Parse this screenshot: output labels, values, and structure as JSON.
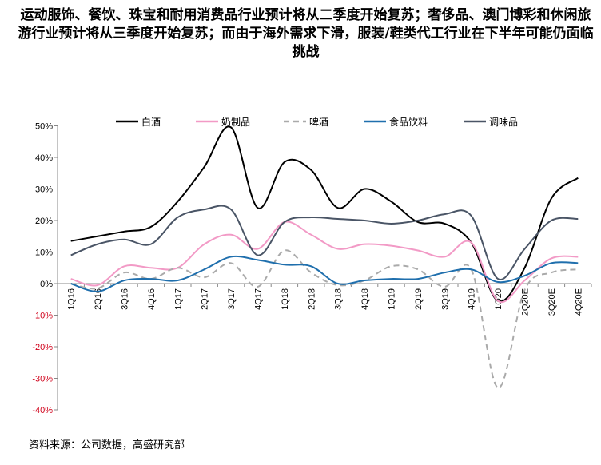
{
  "title": "运动服饰、餐饮、珠宝和耐用消费品行业预计将从二季度开始复苏；奢侈品、澳门博彩和休闲旅游行业预计将从三季度开始复苏；而由于海外需求下滑，服装/鞋类代工行业在下半年可能仍面临挑战",
  "source": "资料来源：公司数据，高盛研究部",
  "chart_data": {
    "type": "line",
    "categories": [
      "1Q16",
      "2Q16",
      "3Q16",
      "4Q16",
      "1Q17",
      "2Q17",
      "3Q17",
      "4Q17",
      "1Q18",
      "2Q18",
      "3Q18",
      "4Q18",
      "1Q19",
      "2Q19",
      "3Q19",
      "4Q19",
      "1Q20",
      "2Q20E",
      "3Q20E",
      "4Q20E"
    ],
    "ylim": [
      -40,
      50
    ],
    "yticks": [
      50,
      40,
      30,
      20,
      10,
      0,
      -10,
      -20,
      -30,
      -40
    ],
    "ytick_labels": [
      "50%",
      "40%",
      "30%",
      "20%",
      "10%",
      "0%",
      "-10%",
      "-20%",
      "-30%",
      "-40%"
    ],
    "legend": "top",
    "series": [
      {
        "name": "白酒",
        "color": "#000000",
        "dash": false,
        "values": [
          13.5,
          15,
          16.5,
          18,
          26,
          37,
          49.5,
          24,
          38.5,
          36,
          24,
          30,
          26,
          19.5,
          19,
          13,
          -5.5,
          5,
          27,
          33.5
        ]
      },
      {
        "name": "奶制品",
        "color": "#f29ac6",
        "dash": false,
        "values": [
          1.5,
          -0.5,
          5.5,
          5,
          5,
          12.5,
          15.5,
          11,
          19.5,
          15.5,
          11,
          12.5,
          12,
          10.5,
          8.5,
          13,
          -5.5,
          1,
          8,
          8.5
        ]
      },
      {
        "name": "啤酒",
        "color": "#aaaaaa",
        "dash": true,
        "values": [
          0,
          -1.5,
          3.5,
          1.5,
          5,
          2,
          6.5,
          -1,
          10.5,
          3.5,
          -0.5,
          1,
          5.5,
          4.5,
          -1,
          4.5,
          -33,
          -2,
          3.5,
          4.5
        ]
      },
      {
        "name": "食品饮料",
        "color": "#1f6fad",
        "dash": false,
        "values": [
          0,
          -2.5,
          1,
          1.5,
          1,
          4.5,
          8.5,
          7.5,
          6,
          5.5,
          0,
          1,
          1.5,
          1.5,
          3.5,
          4.5,
          0.5,
          2.5,
          6.5,
          6.5
        ]
      },
      {
        "name": "调味品",
        "color": "#4a5566",
        "dash": false,
        "values": [
          9,
          12.5,
          14,
          12.5,
          21,
          23.5,
          23.5,
          9,
          19.5,
          21,
          20.5,
          20,
          19,
          20,
          22,
          21.5,
          1.5,
          11,
          20,
          20.5
        ]
      }
    ]
  }
}
